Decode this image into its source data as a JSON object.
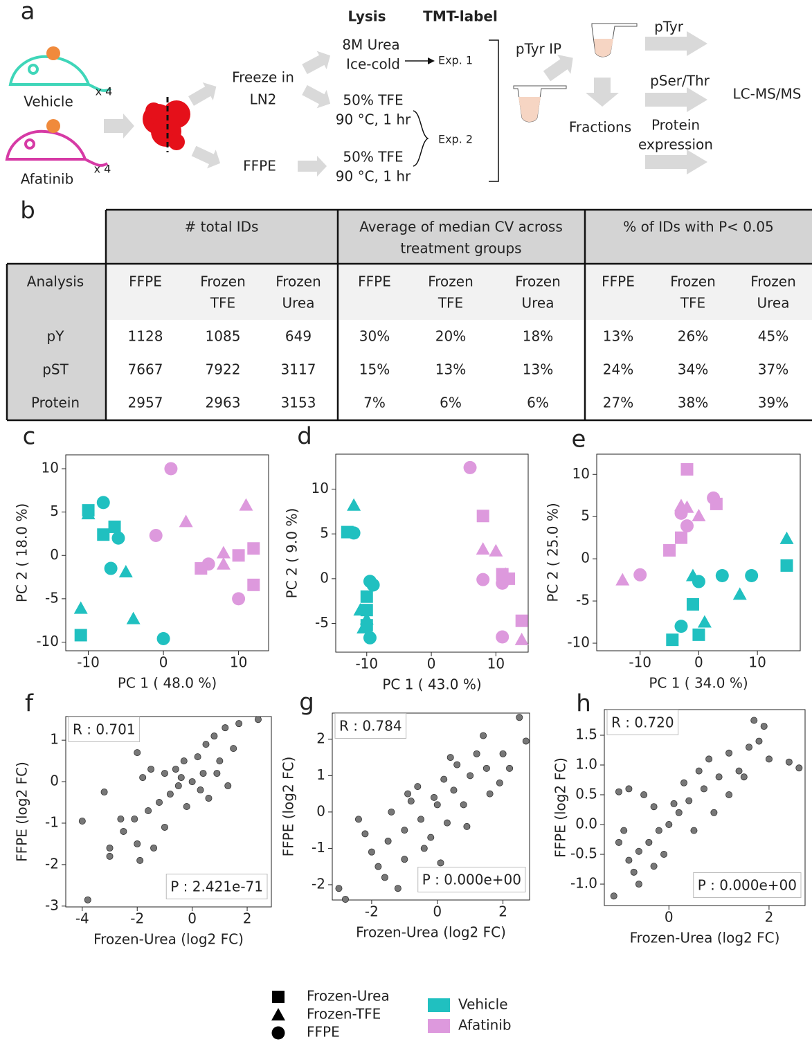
{
  "panel_labels": [
    "a",
    "b",
    "c",
    "d",
    "e",
    "f",
    "g",
    "h"
  ],
  "diagram": {
    "lysis": "Lysis",
    "tmt": "TMT-label",
    "vehicle": "Vehicle",
    "vehicle_n": "x 4",
    "afatinib": "Afatinib",
    "afatinib_n": "x 4",
    "freeze": [
      "Freeze in",
      "LN2"
    ],
    "ffpe": "FFPE",
    "urea": [
      "8M Urea",
      "Ice-cold"
    ],
    "exp1": "Exp. 1",
    "tfe1": [
      "50% TFE",
      "90 °C, 1 hr"
    ],
    "exp2": "Exp. 2",
    "tfe2": [
      "50% TFE",
      "90 °C, 1 hr"
    ],
    "ptyr_ip": "pTyr IP",
    "fractions": "Fractions",
    "ptyr": "pTyr",
    "pser": "pSer/Thr",
    "protein": [
      "Protein",
      "expression"
    ],
    "lcms": "LC-MS/MS"
  },
  "table": {
    "group_headers": [
      [
        "# total IDs"
      ],
      [
        "Average of median CV across",
        "treatment groups"
      ],
      [
        "% of IDs with P< 0.05"
      ]
    ],
    "column_headers": [
      [
        "Analysis"
      ],
      [
        "FFPE"
      ],
      [
        "Frozen",
        "TFE"
      ],
      [
        "Frozen",
        "Urea"
      ],
      [
        "FFPE"
      ],
      [
        "Frozen",
        "TFE"
      ],
      [
        "Frozen",
        "Urea"
      ],
      [
        "FFPE"
      ],
      [
        "Frozen",
        "TFE"
      ],
      [
        "Frozen",
        "Urea"
      ]
    ],
    "rows": [
      [
        "pY",
        "1128",
        "1085",
        "649",
        "30%",
        "20%",
        "18%",
        "13%",
        "26%",
        "45%"
      ],
      [
        "pST",
        "7667",
        "7922",
        "3117",
        "15%",
        "13%",
        "13%",
        "24%",
        "34%",
        "37%"
      ],
      [
        "Protein",
        "2957",
        "2963",
        "3153",
        "7%",
        "6%",
        "6%",
        "27%",
        "38%",
        "39%"
      ]
    ]
  },
  "chart_data": [
    {
      "type": "scatter",
      "x_label": "PC 1 ( 48.0 %)",
      "y_label": "PC 2 ( 18.0 %)",
      "xlim": [
        -13,
        14
      ],
      "ylim": [
        -11,
        11.6
      ],
      "xticks": [
        -10,
        0,
        10
      ],
      "yticks": [
        -10,
        -5,
        0,
        5,
        10
      ],
      "series": [
        {
          "marker": "square",
          "color": "#20c0c0",
          "x": [
            -10,
            -6.5,
            -8,
            -11
          ],
          "y": [
            5.2,
            3.3,
            2.4,
            -9.2
          ]
        },
        {
          "marker": "triangle",
          "color": "#20c0c0",
          "x": [
            -10,
            -5,
            -11,
            -4
          ],
          "y": [
            4.8,
            -1.9,
            -6.1,
            -7.3
          ]
        },
        {
          "marker": "circle",
          "color": "#20c0c0",
          "x": [
            -8,
            -6,
            -7,
            0
          ],
          "y": [
            6.1,
            2,
            -1.5,
            -9.6
          ]
        },
        {
          "marker": "circle",
          "color": "#dd99dd",
          "x": [
            1,
            -1,
            6,
            10
          ],
          "y": [
            10,
            2.3,
            -1,
            -5
          ]
        },
        {
          "marker": "triangle",
          "color": "#dd99dd",
          "x": [
            3,
            11,
            8,
            8
          ],
          "y": [
            3.9,
            5.8,
            0.3,
            -1
          ]
        },
        {
          "marker": "square",
          "color": "#dd99dd",
          "x": [
            5,
            10,
            12,
            12
          ],
          "y": [
            -1.5,
            0,
            0.8,
            -3.4
          ]
        }
      ]
    },
    {
      "type": "scatter",
      "x_label": "PC 1 ( 43.0 %)",
      "y_label": "PC 2 ( 9.0 %)",
      "xlim": [
        -14.8,
        15
      ],
      "ylim": [
        -8.2,
        13.9
      ],
      "xticks": [
        -10,
        0,
        10
      ],
      "yticks": [
        -5,
        0,
        5,
        10
      ],
      "series": [
        {
          "marker": "square",
          "color": "#20c0c0",
          "x": [
            -13,
            -10,
            -10,
            -10
          ],
          "y": [
            5.2,
            -2,
            -3.5,
            -5.2
          ]
        },
        {
          "marker": "triangle",
          "color": "#20c0c0",
          "x": [
            -12,
            -11,
            -10,
            -10.5
          ],
          "y": [
            8.2,
            -3.5,
            -4.5,
            -5.5
          ]
        },
        {
          "marker": "circle",
          "color": "#20c0c0",
          "x": [
            -12,
            -9.5,
            -9,
            -9.5
          ],
          "y": [
            5.1,
            -0.3,
            -0.7,
            -6.6
          ]
        },
        {
          "marker": "circle",
          "color": "#dd99dd",
          "x": [
            6,
            8,
            11,
            11
          ],
          "y": [
            12.4,
            -0.1,
            -0.5,
            -6.5
          ]
        },
        {
          "marker": "triangle",
          "color": "#dd99dd",
          "x": [
            8,
            10,
            14,
            11.5
          ],
          "y": [
            3.3,
            3.1,
            -6.8,
            0.5
          ]
        },
        {
          "marker": "square",
          "color": "#dd99dd",
          "x": [
            8,
            11,
            12,
            14
          ],
          "y": [
            7,
            0.5,
            0,
            -4.7
          ]
        }
      ]
    },
    {
      "type": "scatter",
      "x_label": "PC 1 ( 34.0 %)",
      "y_label": "PC 2 ( 25.0 %)",
      "xlim": [
        -17.4,
        17.3
      ],
      "ylim": [
        -10.9,
        12.4
      ],
      "xticks": [
        -10,
        0,
        10
      ],
      "yticks": [
        -10,
        -5,
        0,
        5,
        10
      ],
      "series": [
        {
          "marker": "square",
          "color": "#dd99dd",
          "x": [
            -2,
            3,
            -3,
            -5
          ],
          "y": [
            10.6,
            6.5,
            2.5,
            1
          ]
        },
        {
          "marker": "triangle",
          "color": "#dd99dd",
          "x": [
            -3,
            -2,
            0,
            -13
          ],
          "y": [
            6.3,
            6.1,
            5.1,
            -2.5
          ]
        },
        {
          "marker": "circle",
          "color": "#dd99dd",
          "x": [
            -3,
            -2,
            2.5,
            -10
          ],
          "y": [
            5.4,
            3.9,
            7.2,
            -1.9
          ]
        },
        {
          "marker": "square",
          "color": "#20c0c0",
          "x": [
            -1,
            15,
            -4.5,
            0
          ],
          "y": [
            -5.4,
            -0.8,
            -9.6,
            -9
          ]
        },
        {
          "marker": "triangle",
          "color": "#20c0c0",
          "x": [
            15,
            -1,
            1,
            7
          ],
          "y": [
            2.4,
            -2,
            -7.5,
            -4.2
          ]
        },
        {
          "marker": "circle",
          "color": "#20c0c0",
          "x": [
            0,
            4,
            9,
            -3
          ],
          "y": [
            -2.7,
            -2,
            -2,
            -8
          ]
        }
      ]
    },
    {
      "type": "scatter",
      "x_label": "Frozen-Urea (log2 FC)",
      "y_label": "FFPE (log2 FC)",
      "xlim": [
        -4.6,
        2.88
      ],
      "ylim": [
        -3.02,
        1.57
      ],
      "xticks": [
        -4,
        -2,
        0,
        2
      ],
      "yticks": [
        -3,
        -2,
        -1,
        0,
        1
      ],
      "annotations": [
        "R : 0.701",
        "P : 2.421e-71"
      ],
      "series": [
        {
          "marker": "dot",
          "color": "#777777",
          "x": [
            2.4,
            1.7,
            1.2,
            0.8,
            0.5,
            0.2,
            -0.3,
            -0.6,
            -1,
            -1.5,
            -2,
            -1.8,
            -0.5,
            0,
            0.4,
            -0.8,
            -1.2,
            -1.6,
            -2.1,
            -0.2,
            0.6,
            -1,
            -2,
            -2.5,
            -3,
            -3,
            -3.2,
            -4,
            -3.8,
            -1.4,
            1,
            1.5,
            -0.4,
            0.3,
            -2.6,
            1.3,
            -1.9,
            0.9
          ],
          "y": [
            1.5,
            1.4,
            1.3,
            1.1,
            0.9,
            0.6,
            0.5,
            0.3,
            0.2,
            0.3,
            0.7,
            0.1,
            -0.1,
            0,
            0.2,
            -0.3,
            -0.5,
            -0.7,
            -0.9,
            -0.6,
            -0.4,
            -1.1,
            -1.5,
            -1.2,
            -1.8,
            -1.6,
            -0.25,
            -0.95,
            -2.85,
            -1.6,
            0.5,
            0.8,
            0.1,
            -0.2,
            -0.9,
            -0.1,
            -1.9,
            0.2
          ]
        }
      ]
    },
    {
      "type": "scatter",
      "x_label": "Frozen-Urea (log2 FC)",
      "y_label": "FFPE (log2 FC)",
      "xlim": [
        -3.2,
        2.81
      ],
      "ylim": [
        -2.42,
        2.72
      ],
      "xticks": [
        -2,
        0,
        2
      ],
      "yticks": [
        -2,
        -1,
        0,
        1,
        2
      ],
      "annotations": [
        "R : 0.784",
        "P : 0.000e+00"
      ],
      "series": [
        {
          "marker": "dot",
          "color": "#777777",
          "x": [
            2.5,
            2.7,
            2,
            1.5,
            1,
            0.5,
            0,
            -0.5,
            -1,
            -1.5,
            -2,
            -2.2,
            -1.8,
            -3,
            -2.8,
            -1.2,
            -0.8,
            0.3,
            0.8,
            -0.2,
            1.2,
            1.6,
            -0.6,
            0.6,
            -1,
            0.2,
            -0.4,
            1.4,
            2.2,
            -2.4,
            -1.4,
            0.9,
            -0.1,
            -0.9,
            1.9,
            -1.6,
            0.1,
            0.4
          ],
          "y": [
            2.6,
            1.95,
            1.6,
            1.2,
            1,
            0.6,
            0.2,
            -0.2,
            -0.5,
            -0.8,
            -1.1,
            -0.6,
            -1.5,
            -2.1,
            -2.4,
            -2.1,
            0.3,
            -0.3,
            0.2,
            -0.7,
            1.6,
            0.5,
            0.7,
            1.3,
            -1.3,
            0.9,
            -1,
            2.1,
            1.2,
            -0.2,
            0,
            -0.4,
            0.4,
            0.5,
            0.8,
            -1.8,
            -1.4,
            1.5
          ]
        }
      ]
    },
    {
      "type": "scatter",
      "x_label": "Frozen-Urea (log2 FC)",
      "y_label": "FFPE (log2 FC)",
      "xlim": [
        -1.29,
        2.72
      ],
      "ylim": [
        -1.36,
        1.93
      ],
      "xticks": [
        0,
        2
      ],
      "yticks": [
        {
          "value": -1,
          "label": "-1.0"
        },
        -0.5,
        {
          "value": 0,
          "label": "0.0"
        },
        0.5,
        {
          "value": 1,
          "label": "1.0"
        },
        1.5
      ],
      "annotations": [
        "R : 0.720",
        "P : 0.000e+00"
      ],
      "series": [
        {
          "marker": "dot",
          "color": "#777777",
          "x": [
            1.7,
            1.9,
            1.6,
            1.2,
            2.4,
            2.6,
            1.8,
            1,
            0.7,
            0.4,
            0.2,
            0,
            -0.2,
            -0.4,
            -0.6,
            -0.8,
            -1,
            -0.8,
            -0.5,
            -1.1,
            -0.6,
            -0.3,
            0.5,
            0.9,
            1.5,
            1.2,
            0.3,
            -0.1,
            -0.9,
            -0.7,
            0.6,
            -0.3,
            0.1,
            1.4,
            -1,
            0.8,
            2
          ],
          "y": [
            1.75,
            1.65,
            1.3,
            1.2,
            1.05,
            0.95,
            1.4,
            0.8,
            0.6,
            0.4,
            0.2,
            0,
            -0.1,
            -0.3,
            -0.45,
            -0.6,
            0.55,
            0.6,
            0.5,
            -1.2,
            -1,
            0.3,
            -0.1,
            0.2,
            0.8,
            0.5,
            0.7,
            -0.5,
            -0.1,
            -0.8,
            0.9,
            -0.7,
            0.35,
            0.9,
            -0.3,
            1.1,
            1.1
          ]
        }
      ]
    }
  ],
  "legend": {
    "markers": [
      {
        "label": "Frozen-Urea",
        "marker": "square"
      },
      {
        "label": "Frozen-TFE",
        "marker": "triangle"
      },
      {
        "label": "FFPE",
        "marker": "circle"
      }
    ],
    "colors": [
      {
        "label": "Vehicle",
        "color": "#20c0c0"
      },
      {
        "label": "Afatinib",
        "color": "#dd99dd"
      }
    ]
  }
}
